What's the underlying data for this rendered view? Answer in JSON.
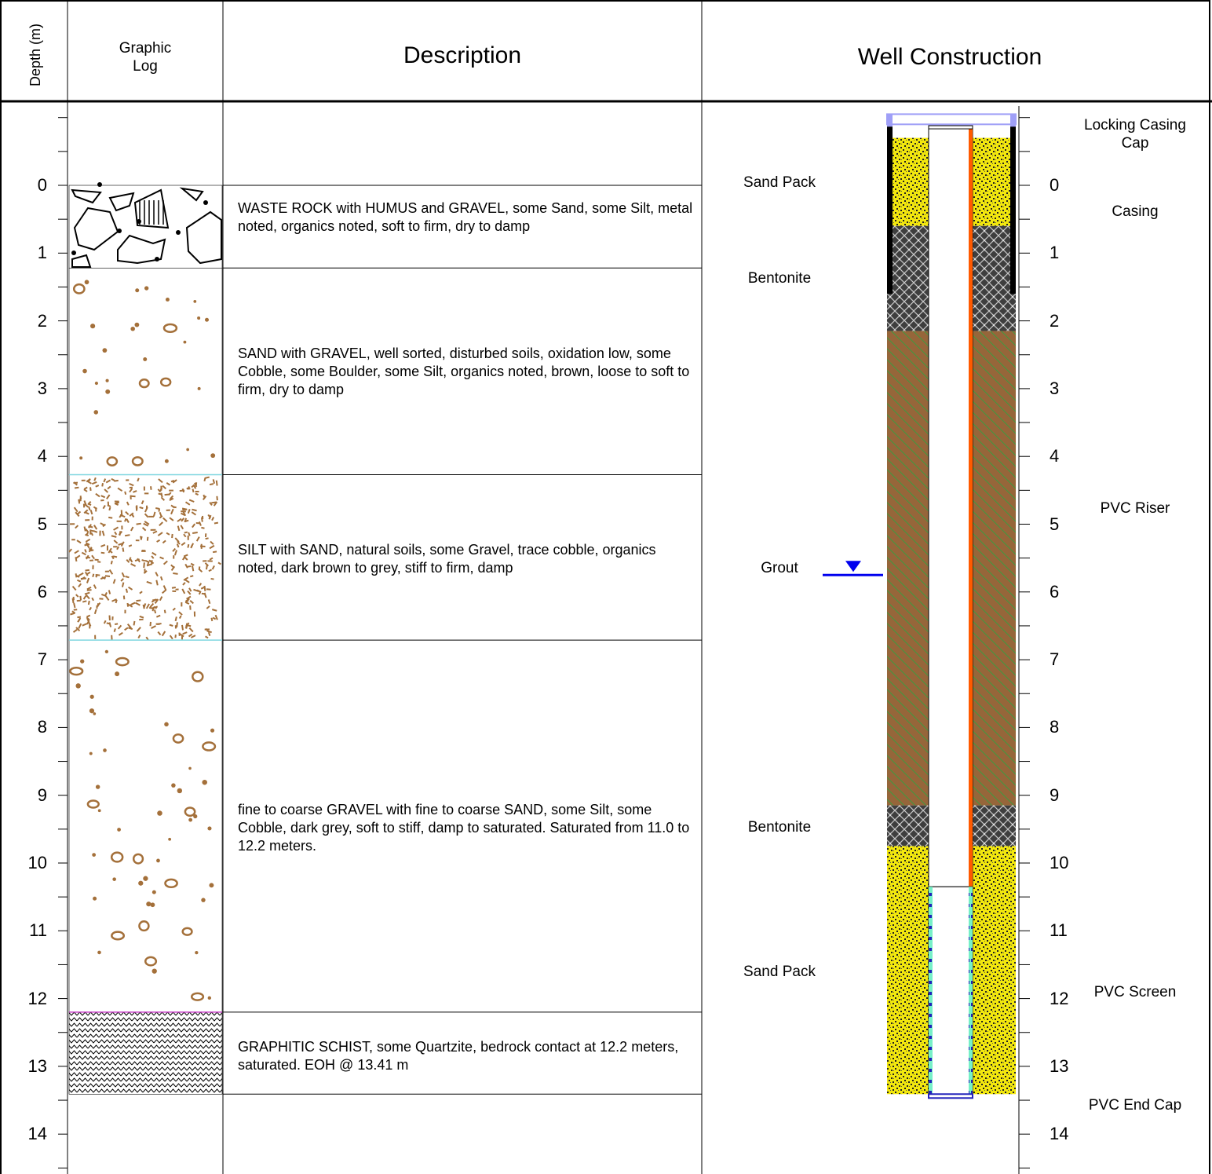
{
  "header": {
    "depth": "Depth (m)",
    "graphic_log_1": "Graphic",
    "graphic_log_2": "Log",
    "description": "Description",
    "well_construction": "Well Construction"
  },
  "depth_ticks": [
    "0",
    "1",
    "2",
    "3",
    "4",
    "5",
    "6",
    "7",
    "8",
    "9",
    "10",
    "11",
    "12",
    "13",
    "14"
  ],
  "layers": [
    {
      "top_m": 0.0,
      "bottom_m": 1.22,
      "pattern": "waste-rock",
      "description": "WASTE ROCK with HUMUS and GRAVEL, some Sand, some Silt, metal noted, organics noted, soft to firm, dry to damp"
    },
    {
      "top_m": 1.22,
      "bottom_m": 4.27,
      "pattern": "sand-gravel",
      "description": "SAND with GRAVEL, well sorted, disturbed soils, oxidation low, some Cobble, some Boulder, some Silt, organics noted, brown, loose to soft to firm, dry to damp"
    },
    {
      "top_m": 4.27,
      "bottom_m": 6.71,
      "pattern": "silt-sand",
      "description": "SILT with SAND, natural soils, some Gravel, trace cobble, organics noted, dark brown to grey, stiff to firm, damp"
    },
    {
      "top_m": 6.71,
      "bottom_m": 12.2,
      "pattern": "sand-gravel",
      "description": "fine to coarse GRAVEL with fine to coarse SAND, some Silt, some Cobble, dark grey, soft to stiff, damp to saturated. Saturated from 11.0 to 12.2 meters."
    },
    {
      "top_m": 12.2,
      "bottom_m": 13.41,
      "pattern": "schist",
      "description": "GRAPHITIC SCHIST, some Quartzite, bedrock contact at 12.2 meters, saturated. EOH @ 13.41 m"
    }
  ],
  "well": {
    "annulus": [
      {
        "label": "Sand Pack",
        "top_m": -0.7,
        "bottom_m": 0.6,
        "fill": "sand-pack"
      },
      {
        "label": "Bentonite",
        "top_m": 0.6,
        "bottom_m": 2.15,
        "fill": "bentonite"
      },
      {
        "label": "Grout",
        "top_m": 2.15,
        "bottom_m": 9.15,
        "fill": "grout"
      },
      {
        "label": "Bentonite",
        "top_m": 9.15,
        "bottom_m": 9.75,
        "fill": "bentonite"
      },
      {
        "label": "Sand Pack",
        "top_m": 9.75,
        "bottom_m": 13.41,
        "fill": "sand-pack"
      }
    ],
    "components": [
      {
        "label": "Locking Casing Cap",
        "top_m": -1.05,
        "bottom_m": -0.9
      },
      {
        "label": "Casing",
        "top_m": -0.9,
        "bottom_m": 1.6
      },
      {
        "label": "PVC Riser",
        "top_m": -0.9,
        "bottom_m": 10.35
      },
      {
        "label": "PVC Screen",
        "top_m": 10.35,
        "bottom_m": 13.41
      },
      {
        "label": "PVC End Cap",
        "top_m": 13.41,
        "bottom_m": 13.47
      }
    ],
    "water_level_m": 5.75
  },
  "colors": {
    "sand_pack": "#f2e70e",
    "bentonite": "#3e3e3e",
    "grout": "#96663a",
    "grout_hatch": "#3f9a3f",
    "riser": "#ff5a00",
    "screen": "#77f0c8",
    "screen_dash": "#2222bb",
    "water_level": "#0000ee",
    "cap": "#9f9ff7",
    "soil_brown": "#a4703a",
    "silt_line": "#7fd6e0"
  }
}
